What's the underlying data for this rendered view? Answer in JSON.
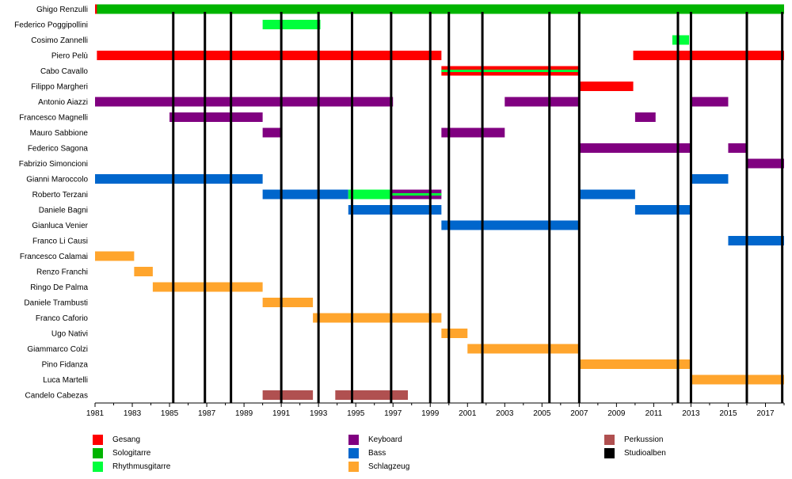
{
  "chart_data": {
    "type": "timeline",
    "title": "",
    "x_range": [
      1981,
      2018
    ],
    "ticks": [
      1981,
      1983,
      1985,
      1987,
      1989,
      1991,
      1993,
      1995,
      1997,
      1999,
      2001,
      2003,
      2005,
      2007,
      2009,
      2011,
      2013,
      2015,
      2017
    ],
    "roles": {
      "vocals": {
        "label": "Gesang",
        "color": "#ff0000"
      },
      "lead_guitar": {
        "label": "Sologitarre",
        "color": "#00b400"
      },
      "rhythm_guitar": {
        "label": "Rhythmusgitarre",
        "color": "#00ff3c"
      },
      "keyboard": {
        "label": "Keyboard",
        "color": "#800080"
      },
      "bass": {
        "label": "Bass",
        "color": "#0066cc"
      },
      "drums": {
        "label": "Schlagzeug",
        "color": "#ffa52d"
      },
      "percussion": {
        "label": "Perkussion",
        "color": "#b05050"
      },
      "albums": {
        "label": "Studioalben",
        "color": "#000000"
      }
    },
    "legend_columns": [
      [
        "vocals",
        "lead_guitar",
        "rhythm_guitar"
      ],
      [
        "keyboard",
        "bass",
        "drums"
      ],
      [
        "percussion",
        "albums"
      ]
    ],
    "studio_albums": [
      1985.2,
      1986.9,
      1988.3,
      1991.0,
      1993.0,
      1994.8,
      1996.9,
      1999.0,
      2000.0,
      2001.8,
      2005.4,
      2007.0,
      2012.3,
      2013.0,
      2016.0,
      2017.9
    ],
    "members": [
      {
        "name": "Ghigo Renzulli",
        "bars": [
          {
            "role": "lead_guitar",
            "start": 1981,
            "end": 2018
          },
          {
            "role": "vocals",
            "start": 1981,
            "end": 1981.1
          }
        ]
      },
      {
        "name": "Federico Poggipollini",
        "bars": [
          {
            "role": "rhythm_guitar",
            "start": 1990,
            "end": 1993.1
          }
        ]
      },
      {
        "name": "Cosimo Zannelli",
        "bars": [
          {
            "role": "rhythm_guitar",
            "start": 2012,
            "end": 2012.9
          }
        ]
      },
      {
        "name": "Piero Pelù",
        "bars": [
          {
            "role": "vocals",
            "start": 1981.1,
            "end": 1999.6
          },
          {
            "role": "vocals",
            "start": 2009.9,
            "end": 2018
          }
        ]
      },
      {
        "name": "Cabo Cavallo",
        "bars": [
          {
            "role": "vocals",
            "start": 1999.6,
            "end": 2007
          },
          {
            "role": "rhythm_guitar",
            "start": 1999.6,
            "end": 2007,
            "thin": true
          }
        ]
      },
      {
        "name": "Filippo Margheri",
        "bars": [
          {
            "role": "vocals",
            "start": 2007,
            "end": 2009.9
          }
        ]
      },
      {
        "name": "Antonio Aiazzi",
        "bars": [
          {
            "role": "keyboard",
            "start": 1981,
            "end": 1997
          },
          {
            "role": "keyboard",
            "start": 2003,
            "end": 2007
          },
          {
            "role": "keyboard",
            "start": 2013,
            "end": 2015
          }
        ]
      },
      {
        "name": "Francesco Magnelli",
        "bars": [
          {
            "role": "keyboard",
            "start": 1985,
            "end": 1990
          },
          {
            "role": "keyboard",
            "start": 2010,
            "end": 2011.1
          }
        ]
      },
      {
        "name": "Mauro Sabbione",
        "bars": [
          {
            "role": "keyboard",
            "start": 1990,
            "end": 1991
          },
          {
            "role": "keyboard",
            "start": 1999.6,
            "end": 2003
          }
        ]
      },
      {
        "name": "Federico Sagona",
        "bars": [
          {
            "role": "keyboard",
            "start": 2007,
            "end": 2013
          },
          {
            "role": "keyboard",
            "start": 2015,
            "end": 2016
          }
        ]
      },
      {
        "name": "Fabrizio Simoncioni",
        "bars": [
          {
            "role": "keyboard",
            "start": 2016,
            "end": 2018
          }
        ]
      },
      {
        "name": "Gianni Maroccolo",
        "bars": [
          {
            "role": "bass",
            "start": 1981,
            "end": 1990
          },
          {
            "role": "bass",
            "start": 2013,
            "end": 2015
          }
        ]
      },
      {
        "name": "Roberto Terzani",
        "bars": [
          {
            "role": "bass",
            "start": 1990,
            "end": 1994.6
          },
          {
            "role": "rhythm_guitar",
            "start": 1994.6,
            "end": 1996.9
          },
          {
            "role": "keyboard",
            "start": 1996.9,
            "end": 1999.6
          },
          {
            "role": "rhythm_guitar",
            "start": 1996.9,
            "end": 1999.6,
            "thin": true
          },
          {
            "role": "bass",
            "start": 2007,
            "end": 2010
          }
        ]
      },
      {
        "name": "Daniele Bagni",
        "bars": [
          {
            "role": "bass",
            "start": 1994.6,
            "end": 1999.6
          },
          {
            "role": "bass",
            "start": 2010,
            "end": 2013
          }
        ]
      },
      {
        "name": "Gianluca Venier",
        "bars": [
          {
            "role": "bass",
            "start": 1999.6,
            "end": 2007
          }
        ]
      },
      {
        "name": "Franco Li Causi",
        "bars": [
          {
            "role": "bass",
            "start": 2015,
            "end": 2018
          }
        ]
      },
      {
        "name": "Francesco Calamai",
        "bars": [
          {
            "role": "drums",
            "start": 1981,
            "end": 1983.1
          }
        ]
      },
      {
        "name": "Renzo Franchi",
        "bars": [
          {
            "role": "drums",
            "start": 1983.1,
            "end": 1984.1
          }
        ]
      },
      {
        "name": "Ringo De Palma",
        "bars": [
          {
            "role": "drums",
            "start": 1984.1,
            "end": 1990
          }
        ]
      },
      {
        "name": "Daniele Trambusti",
        "bars": [
          {
            "role": "drums",
            "start": 1990,
            "end": 1992.7
          }
        ]
      },
      {
        "name": "Franco Caforio",
        "bars": [
          {
            "role": "drums",
            "start": 1992.7,
            "end": 1999.6
          }
        ]
      },
      {
        "name": "Ugo Nativi",
        "bars": [
          {
            "role": "drums",
            "start": 1999.6,
            "end": 2001
          }
        ]
      },
      {
        "name": "Giammarco Colzi",
        "bars": [
          {
            "role": "drums",
            "start": 2001,
            "end": 2007
          }
        ]
      },
      {
        "name": "Pino Fidanza",
        "bars": [
          {
            "role": "drums",
            "start": 2007,
            "end": 2013
          }
        ]
      },
      {
        "name": "Luca Martelli",
        "bars": [
          {
            "role": "drums",
            "start": 2013,
            "end": 2018
          }
        ]
      },
      {
        "name": "Candelo Cabezas",
        "bars": [
          {
            "role": "percussion",
            "start": 1990,
            "end": 1992.7
          },
          {
            "role": "percussion",
            "start": 1993.9,
            "end": 1997.8
          }
        ]
      }
    ]
  }
}
